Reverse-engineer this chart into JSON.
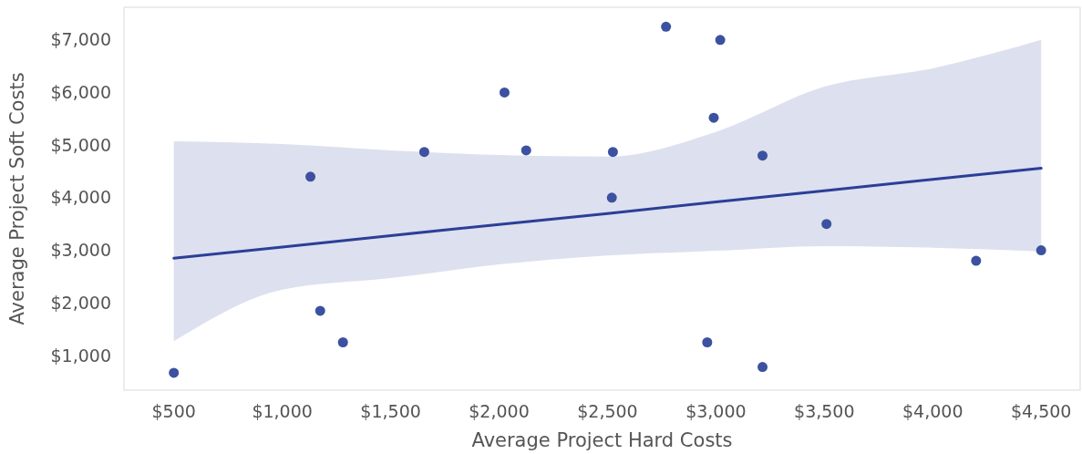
{
  "chart_data": {
    "type": "scatter",
    "xlabel": "Average Project Hard Costs",
    "ylabel": "Average Project Soft Costs",
    "xlim": [
      270,
      4680
    ],
    "ylim": [
      340,
      7620
    ],
    "xticks": [
      {
        "value": 500,
        "label": "$500"
      },
      {
        "value": 1000,
        "label": "$1,000"
      },
      {
        "value": 1500,
        "label": "$1,500"
      },
      {
        "value": 2000,
        "label": "$2,000"
      },
      {
        "value": 2500,
        "label": "$2,500"
      },
      {
        "value": 3000,
        "label": "$3,000"
      },
      {
        "value": 3500,
        "label": "$3,500"
      },
      {
        "value": 4000,
        "label": "$4,000"
      },
      {
        "value": 4500,
        "label": "$4,500"
      }
    ],
    "yticks": [
      {
        "value": 1000,
        "label": "$1,000"
      },
      {
        "value": 2000,
        "label": "$2,000"
      },
      {
        "value": 3000,
        "label": "$3,000"
      },
      {
        "value": 4000,
        "label": "$4,000"
      },
      {
        "value": 5000,
        "label": "$5,000"
      },
      {
        "value": 6000,
        "label": "$6,000"
      },
      {
        "value": 7000,
        "label": "$7,000"
      }
    ],
    "grid": false,
    "series": [
      {
        "color": "#3c519f",
        "marker": "circle",
        "x": [
          500,
          1130,
          1175,
          1280,
          1655,
          2025,
          2125,
          2520,
          2525,
          2770,
          2960,
          2990,
          3020,
          3215,
          3215,
          3510,
          4200,
          4500
        ],
        "values": [
          670,
          4400,
          1850,
          1250,
          4870,
          6000,
          4900,
          4000,
          4870,
          7250,
          1250,
          5520,
          7000,
          4800,
          780,
          3500,
          2800,
          3000
        ]
      },
      {
        "type": "line",
        "color": "#2b3f98",
        "line_style": "solid",
        "marker": "none",
        "x": [
          500,
          1000,
          1500,
          2000,
          2500,
          3000,
          3500,
          4000,
          4500
        ],
        "values": [
          2850,
          3060,
          3280,
          3490,
          3700,
          3920,
          4130,
          4350,
          4560
        ],
        "lower": [
          1270,
          2250,
          2470,
          2730,
          2900,
          2990,
          3080,
          3050,
          2980
        ],
        "upper": [
          5070,
          5020,
          4900,
          4810,
          4780,
          5250,
          6110,
          6460,
          7000
        ]
      }
    ]
  }
}
